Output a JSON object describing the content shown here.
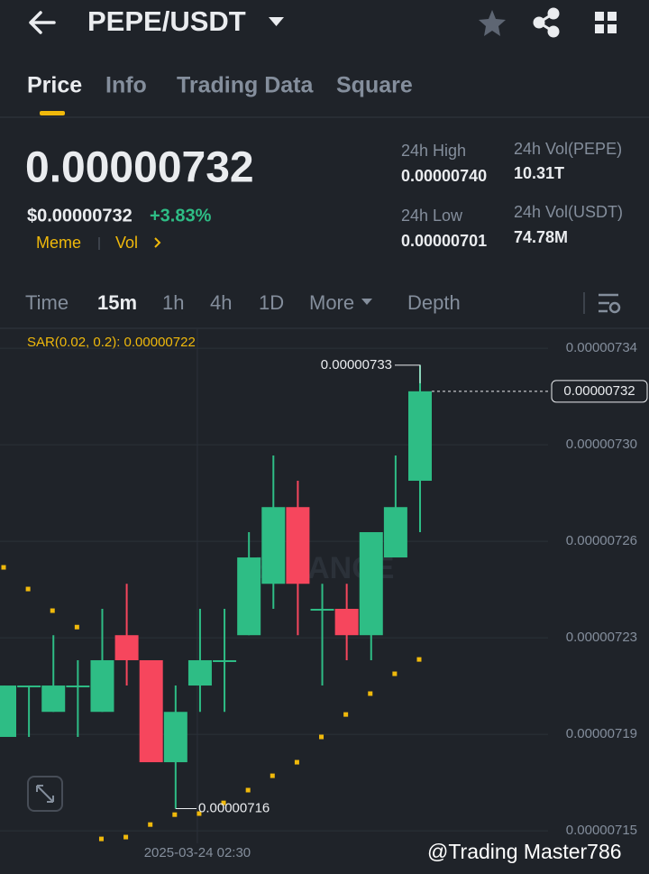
{
  "header": {
    "pair": "PEPE/USDT"
  },
  "tabs": [
    "Price",
    "Info",
    "Trading Data",
    "Square"
  ],
  "price": {
    "last": "0.00000732",
    "usd": "$0.00000732",
    "change": "+3.83%",
    "tags": [
      "Meme",
      "Vol"
    ]
  },
  "stats": [
    {
      "label": "24h High",
      "value": "0.00000740"
    },
    {
      "label": "24h Vol(PEPE)",
      "value": "10.31T"
    },
    {
      "label": "24h Low",
      "value": "0.00000701"
    },
    {
      "label": "24h Vol(USDT)",
      "value": "74.78M"
    }
  ],
  "intervals": [
    "Time",
    "15m",
    "1h",
    "4h",
    "1D",
    "More",
    "Depth"
  ],
  "watermark": "BINANCE",
  "credit": "@Trading Master786",
  "chart_data": {
    "type": "candlestick",
    "indicator": "SAR(0.02, 0.2): 0.00000722",
    "up_color": "#2ebd85",
    "down_color": "#f6465d",
    "sar_color": "#f0b90b",
    "categories": [
      null,
      null,
      null,
      null,
      null,
      null,
      null,
      null,
      "2025-03-24 02:30",
      null,
      null,
      null,
      null,
      null,
      null,
      null,
      null,
      null
    ],
    "open": [
      7.1875e-06,
      7.2069e-06,
      7.1971e-06,
      7.2069e-06,
      7.1971e-06,
      7.2265e-06,
      7.2169e-06,
      7.1778e-06,
      7.2072e-06,
      7.2165e-06,
      7.2265e-06,
      7.2462e-06,
      7.2756e-06,
      7.2362e-06,
      7.2366e-06,
      7.2265e-06,
      7.2563e-06,
      7.2857e-06
    ],
    "high": [
      7.2072e-06,
      7.2072e-06,
      7.2265e-06,
      7.2169e-06,
      7.2366e-06,
      7.2462e-06,
      7.2169e-06,
      7.2072e-06,
      7.2366e-06,
      7.2366e-06,
      7.266e-06,
      7.2954e-06,
      7.2857e-06,
      7.2462e-06,
      7.2462e-06,
      7.266e-06,
      7.2954e-06,
      7.33e-06
    ],
    "low": [
      7.1875e-06,
      7.1875e-06,
      7.1971e-06,
      7.1875e-06,
      7.1971e-06,
      7.2072e-06,
      7.1778e-06,
      7.16e-06,
      7.1971e-06,
      7.1971e-06,
      7.2265e-06,
      7.2366e-06,
      7.2265e-06,
      7.2072e-06,
      7.2169e-06,
      7.2169e-06,
      7.2563e-06,
      7.266e-06
    ],
    "close": [
      7.2072e-06,
      7.2072e-06,
      7.2072e-06,
      7.2072e-06,
      7.2169e-06,
      7.2169e-06,
      7.1778e-06,
      7.1971e-06,
      7.2169e-06,
      7.2169e-06,
      7.2563e-06,
      7.2756e-06,
      7.2462e-06,
      7.2366e-06,
      7.2265e-06,
      7.266e-06,
      7.2756e-06,
      7.32e-06
    ],
    "sar": [
      7.2525e-06,
      7.2442e-06,
      7.2359e-06,
      7.2296e-06,
      7.1484e-06,
      7.1491e-06,
      7.1539e-06,
      7.1577e-06,
      7.1581e-06,
      7.1622e-06,
      7.1671e-06,
      7.1726e-06,
      7.1778e-06,
      7.1875e-06,
      7.1961e-06,
      7.2041e-06,
      7.2117e-06,
      7.2172e-06
    ],
    "ylim": [
      7.1467e-06,
      7.3438e-06
    ],
    "yticks": [
      {
        "value": 7.3365e-06,
        "label": "0.00000734"
      },
      {
        "value": 7.2995e-06,
        "label": "0.00000730"
      },
      {
        "value": 7.2625e-06,
        "label": "0.00000726"
      },
      {
        "value": 7.2255e-06,
        "label": "0.00000723"
      },
      {
        "value": 7.1885e-06,
        "label": "0.00000719"
      },
      {
        "value": 7.1515e-06,
        "label": "0.00000715"
      }
    ],
    "grid": true,
    "annotations": [
      {
        "value": 7.33e-06,
        "label": "0.00000733"
      },
      {
        "value": 7.16e-06,
        "label": "0.00000716"
      }
    ],
    "last_price": {
      "value": 7.32e-06,
      "label": "0.00000732"
    }
  }
}
